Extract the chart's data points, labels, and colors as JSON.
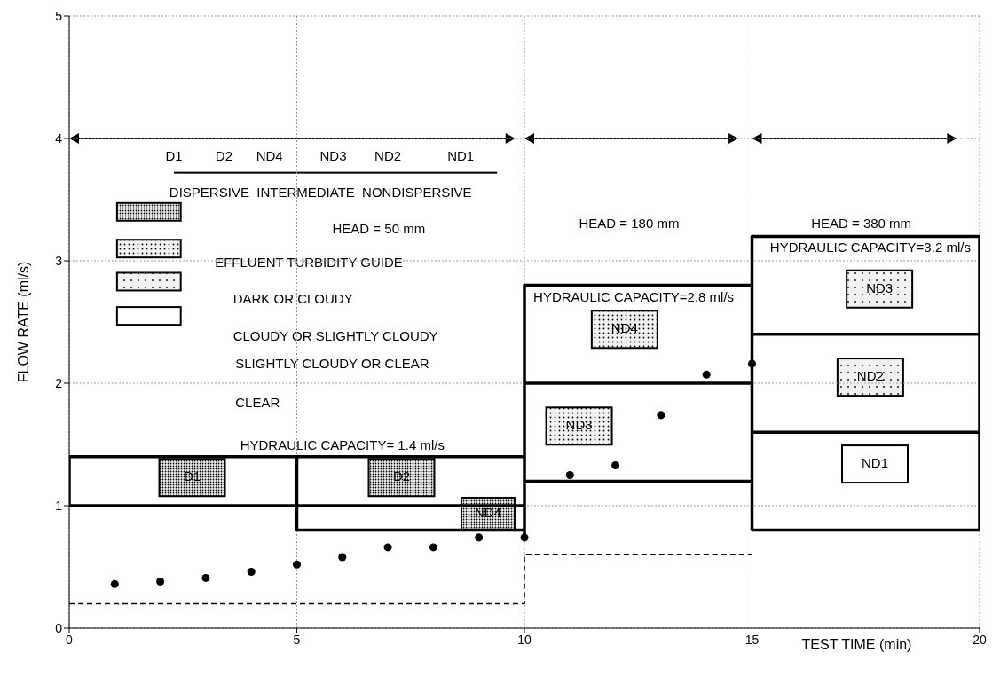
{
  "chart_data": {
    "type": "scatter",
    "xlabel": "TEST TIME (min)",
    "ylabel": "FLOW RATE (ml/s)",
    "xlim": [
      0,
      20
    ],
    "xticks": [
      0,
      5,
      10,
      15,
      20
    ],
    "ylim": [
      0,
      5
    ],
    "yticks": [
      0,
      1,
      2,
      3,
      4,
      5
    ],
    "grid": true,
    "series": [
      {
        "marker": "circle",
        "color": "#000000",
        "x": [
          1,
          2,
          3,
          4,
          5,
          6,
          7,
          8,
          9,
          10,
          11,
          12,
          13,
          14,
          15
        ],
        "values": [
          0.36,
          0.38,
          0.41,
          0.46,
          0.52,
          0.58,
          0.66,
          0.66,
          0.74,
          0.74,
          1.25,
          1.33,
          1.74,
          2.07,
          2.16
        ]
      },
      {
        "type": "line",
        "marker": "none",
        "line_style": "solid",
        "color": "#000000",
        "x": [
          10,
          0,
          0,
          10
        ],
        "values": [
          1.4,
          1.4,
          1.0,
          1.0
        ]
      },
      {
        "type": "line",
        "marker": "none",
        "line_style": "solid",
        "color": "#000000",
        "x": [
          5,
          5,
          10
        ],
        "values": [
          1.4,
          0.8,
          0.8
        ]
      },
      {
        "type": "line",
        "marker": "none",
        "line_style": "solid",
        "color": "#000000",
        "x": [
          10,
          10,
          15
        ],
        "values": [
          0.75,
          2.8,
          2.8
        ]
      },
      {
        "type": "line",
        "marker": "none",
        "line_style": "solid",
        "color": "#000000",
        "x": [
          10,
          15
        ],
        "values": [
          2.0,
          2.0
        ]
      },
      {
        "type": "line",
        "marker": "none",
        "line_style": "solid",
        "color": "#000000",
        "x": [
          10,
          15
        ],
        "values": [
          1.2,
          1.2
        ]
      },
      {
        "type": "line",
        "marker": "none",
        "line_style": "solid",
        "color": "#000000",
        "x": [
          15,
          15,
          20,
          20
        ],
        "values": [
          0.8,
          3.2,
          3.2,
          0.8
        ]
      },
      {
        "type": "line",
        "marker": "none",
        "line_style": "solid",
        "color": "#000000",
        "x": [
          15,
          20
        ],
        "values": [
          0.8,
          0.8
        ]
      },
      {
        "type": "line",
        "marker": "none",
        "line_style": "solid",
        "color": "#000000",
        "x": [
          15,
          20
        ],
        "values": [
          2.4,
          2.4
        ]
      },
      {
        "type": "line",
        "marker": "none",
        "line_style": "solid",
        "color": "#000000",
        "x": [
          15,
          20
        ],
        "values": [
          1.6,
          1.6
        ]
      },
      {
        "type": "line",
        "marker": "none",
        "line_style": "dashed",
        "color": "#000000",
        "x": [
          0,
          10,
          10,
          15
        ],
        "values": [
          0.2,
          0.2,
          0.6,
          0.6
        ]
      }
    ],
    "annotations": [
      "D1",
      "D2",
      "ND4",
      "ND3",
      "ND4",
      "ND3",
      "ND2",
      "ND1",
      {
        "text": "HYDRAULIC CAPACITY= 1.4 ml/s",
        "x": 6.0,
        "y": 1.4
      },
      {
        "text": "HYDRAULIC CAPACITY=2.8 ml/s",
        "x": 12.4,
        "y": 2.8
      },
      {
        "text": "HYDRAULIC CAPACITY=3.2 ml/s",
        "x": 17.6,
        "y": 3.2
      },
      "HEAD = 50 mm",
      "HEAD = 180 mm",
      "HEAD = 380 mm",
      "D1",
      "D2",
      "ND4",
      "ND3",
      "ND2",
      "ND1",
      "DISPERSIVE  INTERMEDIATE  NONDISPERSIVE",
      "EFFLUENT TURBIDITY GUIDE",
      "DARK OR CLOUDY",
      "CLOUDY OR SLIGHTLY CLOUDY",
      "SLIGHTLY CLOUDY OR CLEAR",
      "CLEAR"
    ]
  }
}
